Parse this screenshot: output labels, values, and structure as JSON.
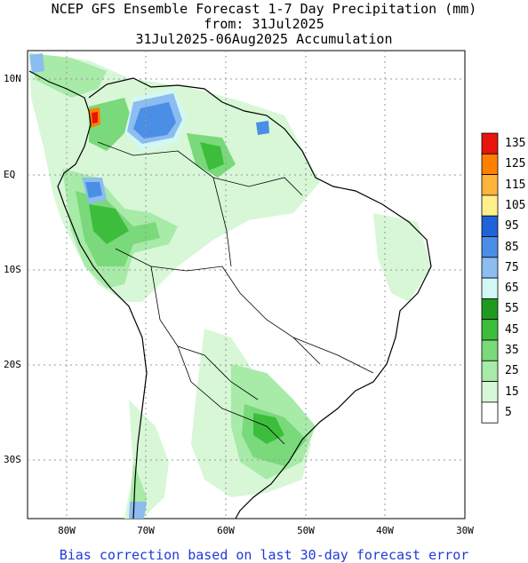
{
  "title": {
    "line1": "NCEP GFS Ensemble Forecast 1-7 Day Precipitation (mm)",
    "line2": "from: 31Jul2025",
    "line3": "31Jul2025-06Aug2025 Accumulation"
  },
  "footer": "Bias correction based on last 30-day forecast error",
  "axes": {
    "lat_labels": [
      "10N",
      "EQ",
      "10S",
      "20S",
      "30S"
    ],
    "lon_labels": [
      "80W",
      "70W",
      "60W",
      "50W",
      "40W",
      "30W"
    ]
  },
  "colorbar": {
    "levels": [
      "135",
      "125",
      "115",
      "105",
      "95",
      "85",
      "75",
      "65",
      "55",
      "45",
      "35",
      "25",
      "15",
      "5"
    ],
    "colors": [
      "#e8140a",
      "#ff7f00",
      "#ffb43c",
      "#fff08c",
      "#1e64d8",
      "#4b8ee6",
      "#8cbcf0",
      "#d2f8f5",
      "#1e9a1e",
      "#3cbe3c",
      "#7ad97a",
      "#a8eaa8",
      "#d7f7d7",
      "#ffffff"
    ]
  },
  "colors": {
    "land": "#ffffff",
    "ocean": "#ffffff",
    "footer_text": "#1f3bd8",
    "grid": "#9a9a9a"
  }
}
